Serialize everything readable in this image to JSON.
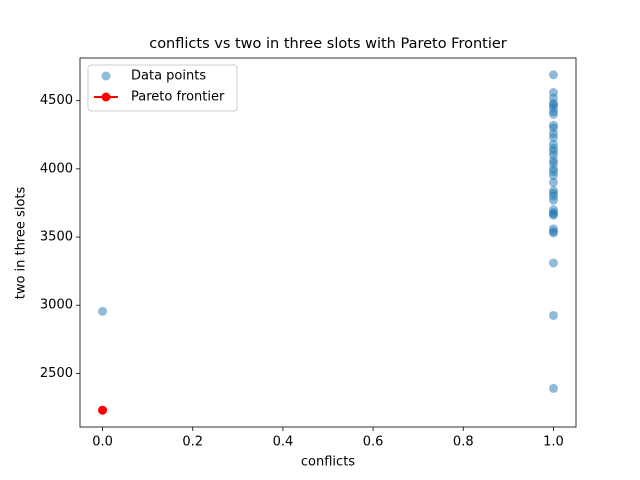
{
  "chart_data": {
    "type": "scatter",
    "title": "conflicts vs two in three slots with Pareto Frontier",
    "x_label": "conflicts",
    "y_label": "two in three slots",
    "xlim": [
      -0.05,
      1.05
    ],
    "ylim": [
      2107,
      4813
    ],
    "xticks": [
      {
        "value": 0,
        "label": "0.0"
      },
      {
        "value": 0.2,
        "label": "0.2"
      },
      {
        "value": 0.4,
        "label": "0.4"
      },
      {
        "value": 0.6,
        "label": "0.6"
      },
      {
        "value": 0.8,
        "label": "0.8"
      },
      {
        "value": 1,
        "label": "1.0"
      }
    ],
    "yticks": [
      2500,
      3000,
      3500,
      4000,
      4500
    ],
    "legend": "upper left",
    "series": [
      {
        "name": "Data points",
        "color": "#1f77b4",
        "style": "scatter",
        "x": [
          0,
          1,
          1,
          1,
          1,
          1,
          1,
          1,
          1,
          1,
          1,
          1,
          1,
          1,
          1,
          1,
          1,
          1,
          1,
          1,
          1,
          1,
          1,
          1,
          1,
          1,
          1,
          1,
          1,
          1,
          1,
          1,
          1,
          1,
          1,
          1,
          1
        ],
        "values": [
          2955,
          4690,
          2390,
          2925,
          3310,
          3530,
          3540,
          3560,
          3660,
          3670,
          3680,
          3700,
          3770,
          3800,
          3820,
          3840,
          3900,
          3950,
          3980,
          4000,
          4040,
          4060,
          4100,
          4130,
          4150,
          4180,
          4230,
          4260,
          4300,
          4320,
          4400,
          4420,
          4450,
          4470,
          4480,
          4520,
          4560
        ]
      },
      {
        "name": "Pareto frontier",
        "color": "#ff0000",
        "style": "line",
        "x": [
          0
        ],
        "values": [
          2230
        ]
      }
    ]
  }
}
